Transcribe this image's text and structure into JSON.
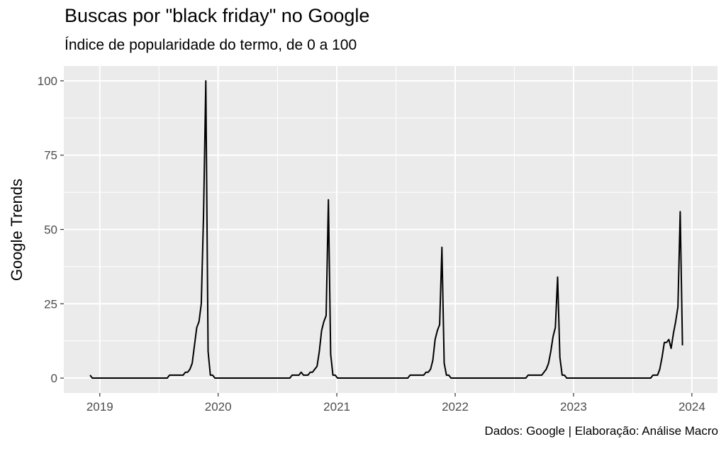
{
  "chart_data": {
    "type": "line",
    "title": "Buscas por \"black friday\" no Google",
    "subtitle": "Índice de popularidade do termo, de 0 a 100",
    "xlabel": "",
    "ylabel": "Google Trends",
    "caption": "Dados: Google | Elaboração: Análise Macro",
    "xlim": [
      "2018-09-12",
      "2024-03-20"
    ],
    "ylim": [
      -5,
      105
    ],
    "xticks": [
      {
        "date": "2019-01-01",
        "label": "2019"
      },
      {
        "date": "2020-01-01",
        "label": "2020"
      },
      {
        "date": "2021-01-01",
        "label": "2021"
      },
      {
        "date": "2022-01-01",
        "label": "2022"
      },
      {
        "date": "2023-01-01",
        "label": "2023"
      },
      {
        "date": "2024-01-01",
        "label": "2024"
      }
    ],
    "yticks": [
      0,
      25,
      50,
      75,
      100
    ],
    "grid": true,
    "line_color": "#000000",
    "panel_color": "#ebebeb",
    "series": [
      {
        "points": [
          [
            "2018-12-02",
            1
          ],
          [
            "2018-12-09",
            0
          ],
          [
            "2019-07-28",
            0
          ],
          [
            "2019-08-04",
            1
          ],
          [
            "2019-09-15",
            1
          ],
          [
            "2019-09-22",
            2
          ],
          [
            "2019-09-29",
            2
          ],
          [
            "2019-10-06",
            3
          ],
          [
            "2019-10-13",
            5
          ],
          [
            "2019-10-20",
            11
          ],
          [
            "2019-10-27",
            17
          ],
          [
            "2019-11-03",
            19
          ],
          [
            "2019-11-10",
            25
          ],
          [
            "2019-11-17",
            55
          ],
          [
            "2019-11-24",
            100
          ],
          [
            "2019-12-01",
            9
          ],
          [
            "2019-12-08",
            1
          ],
          [
            "2019-12-15",
            1
          ],
          [
            "2019-12-22",
            0
          ],
          [
            "2020-08-09",
            0
          ],
          [
            "2020-08-16",
            1
          ],
          [
            "2020-09-06",
            1
          ],
          [
            "2020-09-13",
            2
          ],
          [
            "2020-09-20",
            1
          ],
          [
            "2020-10-04",
            1
          ],
          [
            "2020-10-11",
            2
          ],
          [
            "2020-10-18",
            2
          ],
          [
            "2020-10-25",
            3
          ],
          [
            "2020-11-01",
            4
          ],
          [
            "2020-11-08",
            9
          ],
          [
            "2020-11-15",
            16
          ],
          [
            "2020-11-22",
            19
          ],
          [
            "2020-11-29",
            21
          ],
          [
            "2020-12-06",
            60
          ],
          [
            "2020-12-13",
            8
          ],
          [
            "2020-12-20",
            1
          ],
          [
            "2020-12-27",
            1
          ],
          [
            "2021-01-03",
            0
          ],
          [
            "2021-08-08",
            0
          ],
          [
            "2021-08-15",
            1
          ],
          [
            "2021-09-26",
            1
          ],
          [
            "2021-10-03",
            2
          ],
          [
            "2021-10-10",
            2
          ],
          [
            "2021-10-17",
            3
          ],
          [
            "2021-10-24",
            6
          ],
          [
            "2021-10-31",
            13
          ],
          [
            "2021-11-07",
            16
          ],
          [
            "2021-11-14",
            18
          ],
          [
            "2021-11-21",
            44
          ],
          [
            "2021-11-28",
            5
          ],
          [
            "2021-12-05",
            1
          ],
          [
            "2021-12-12",
            1
          ],
          [
            "2021-12-19",
            0
          ],
          [
            "2022-08-07",
            0
          ],
          [
            "2022-08-14",
            1
          ],
          [
            "2022-09-25",
            1
          ],
          [
            "2022-10-02",
            2
          ],
          [
            "2022-10-09",
            3
          ],
          [
            "2022-10-16",
            5
          ],
          [
            "2022-10-23",
            9
          ],
          [
            "2022-10-30",
            14
          ],
          [
            "2022-11-06",
            17
          ],
          [
            "2022-11-13",
            34
          ],
          [
            "2022-11-20",
            7
          ],
          [
            "2022-11-27",
            1
          ],
          [
            "2022-12-04",
            1
          ],
          [
            "2022-12-11",
            0
          ],
          [
            "2023-08-27",
            0
          ],
          [
            "2023-09-03",
            1
          ],
          [
            "2023-09-17",
            1
          ],
          [
            "2023-09-24",
            3
          ],
          [
            "2023-10-01",
            7
          ],
          [
            "2023-10-08",
            12
          ],
          [
            "2023-10-15",
            12
          ],
          [
            "2023-10-22",
            13
          ],
          [
            "2023-10-29",
            10
          ],
          [
            "2023-11-05",
            15
          ],
          [
            "2023-11-12",
            19
          ],
          [
            "2023-11-19",
            24
          ],
          [
            "2023-11-26",
            56
          ],
          [
            "2023-12-03",
            11
          ]
        ]
      }
    ]
  }
}
